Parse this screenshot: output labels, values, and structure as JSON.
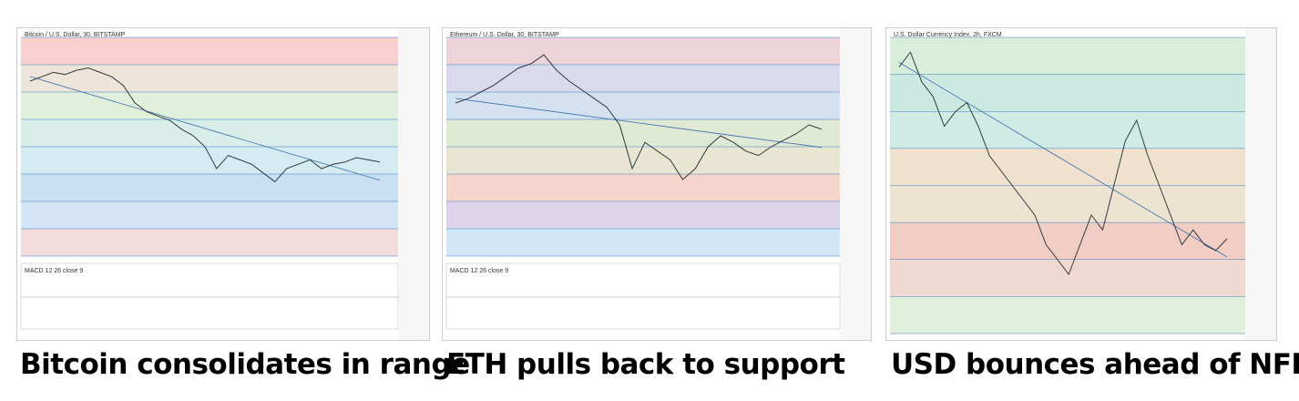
{
  "panels": [
    {
      "header": "Bitcoin / U.S. Dollar, 30, BITSTAMP",
      "indicator": "MACD 12 26 close 9",
      "caption": "Bitcoin consolidates in range",
      "price": [
        80,
        82,
        84,
        83,
        85,
        86,
        84,
        82,
        78,
        70,
        66,
        64,
        62,
        58,
        55,
        50,
        40,
        46,
        44,
        42,
        38,
        34,
        40,
        42,
        44,
        40,
        42,
        43,
        45,
        44,
        43
      ]
    },
    {
      "header": "Ethereum / U.S. Dollar, 30, BITSTAMP",
      "indicator": "MACD 12 26 close 9",
      "caption": "ETH pulls back to support",
      "price": [
        70,
        72,
        75,
        78,
        82,
        86,
        88,
        92,
        85,
        80,
        76,
        72,
        68,
        60,
        40,
        52,
        48,
        44,
        35,
        40,
        50,
        55,
        52,
        48,
        46,
        50,
        53,
        56,
        60,
        58
      ]
    },
    {
      "header": "U.S. Dollar Currency Index, 2h, FXCM",
      "caption": "USD bounces ahead of NFP",
      "price": [
        90,
        95,
        85,
        80,
        70,
        75,
        78,
        70,
        60,
        55,
        50,
        45,
        40,
        30,
        25,
        20,
        30,
        40,
        35,
        50,
        65,
        72,
        60,
        50,
        40,
        30,
        35,
        30,
        28,
        32
      ]
    }
  ]
}
